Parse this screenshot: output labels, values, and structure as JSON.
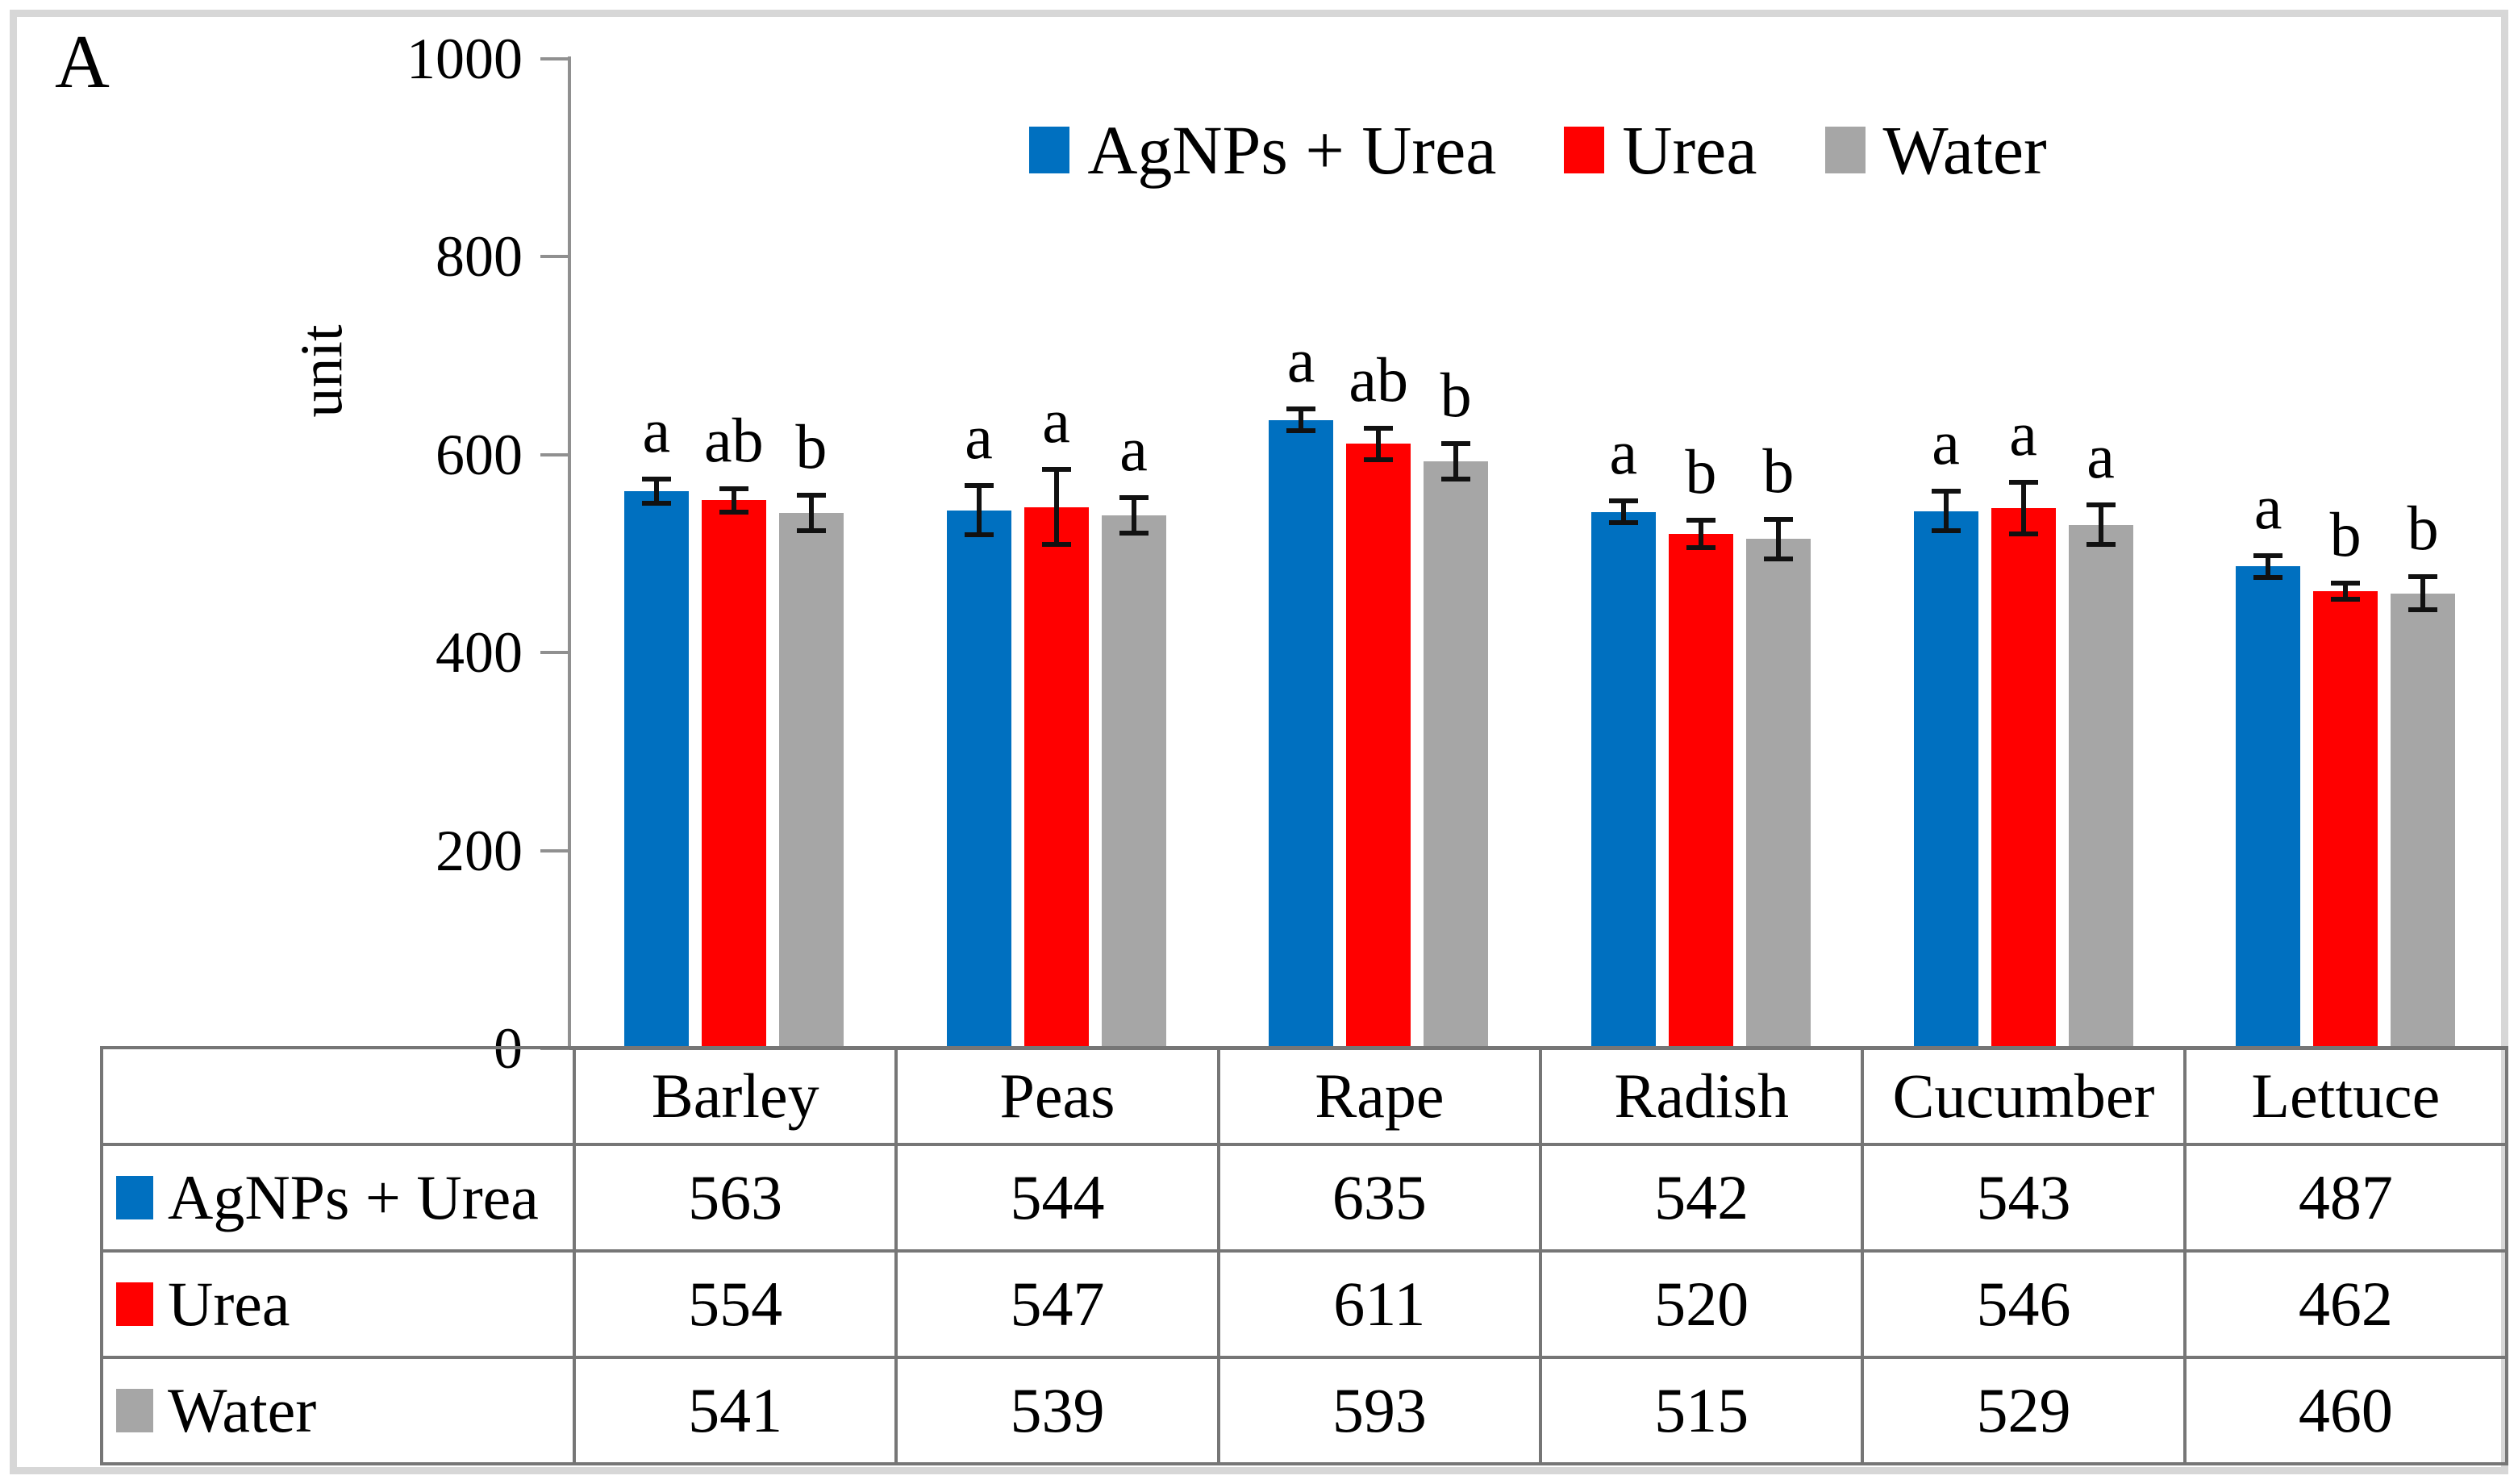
{
  "panel_label": "A",
  "colors": {
    "series_blue": "#0070C0",
    "series_red": "#FF0000",
    "series_gray": "#A6A6A6",
    "axis_line": "#909090",
    "table_border": "#767676",
    "frame_border": "#D7D7D7",
    "error_bar": "#111111"
  },
  "chart_data": {
    "type": "bar",
    "title": "",
    "xlabel": "",
    "ylabel": "unit",
    "ylim": [
      0,
      1000
    ],
    "yticks": [
      0,
      200,
      400,
      600,
      800,
      1000
    ],
    "grid": false,
    "legend_position": "top-center",
    "categories": [
      "Barley",
      "Peas",
      "Rape",
      "Radish",
      "Cucumber",
      "Lettuce"
    ],
    "series": [
      {
        "name": "AgNPs + Urea",
        "color": "#0070C0",
        "values": [
          563,
          544,
          635,
          542,
          543,
          487
        ],
        "errors": [
          12,
          25,
          11,
          11,
          20,
          11
        ],
        "sig_letters": [
          "a",
          "a",
          "a",
          "a",
          "a",
          "a"
        ]
      },
      {
        "name": "Urea",
        "color": "#FF0000",
        "values": [
          554,
          547,
          611,
          520,
          546,
          462
        ],
        "errors": [
          12,
          38,
          16,
          14,
          26,
          8
        ],
        "sig_letters": [
          "ab",
          "a",
          "ab",
          "b",
          "a",
          "b"
        ]
      },
      {
        "name": "Water",
        "color": "#A6A6A6",
        "values": [
          541,
          539,
          593,
          515,
          529,
          460
        ],
        "errors": [
          18,
          18,
          18,
          20,
          20,
          17
        ],
        "sig_letters": [
          "b",
          "a",
          "b",
          "b",
          "a",
          "b"
        ]
      }
    ]
  }
}
